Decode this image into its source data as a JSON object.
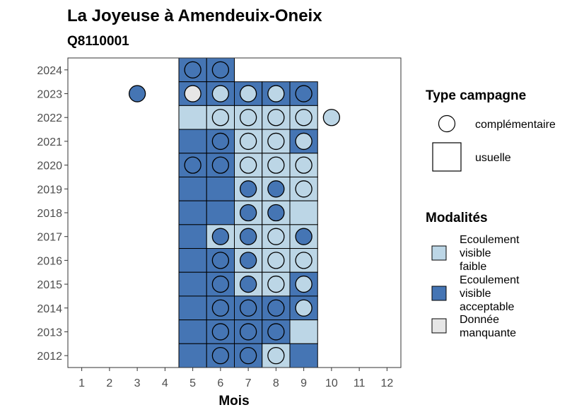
{
  "chart_data": {
    "type": "heatmap",
    "title": "La Joyeuse à Amendeuix-Oneix",
    "subtitle": "Q8110001",
    "xlabel": "Mois",
    "ylabel": "",
    "x_ticks": [
      "1",
      "2",
      "3",
      "4",
      "5",
      "6",
      "7",
      "8",
      "9",
      "10",
      "11",
      "12"
    ],
    "y_ticks": [
      "2012",
      "2013",
      "2014",
      "2015",
      "2016",
      "2017",
      "2018",
      "2019",
      "2020",
      "2021",
      "2022",
      "2023",
      "2024"
    ],
    "xlim": [
      0.5,
      12.5
    ],
    "ylim": [
      2011.5,
      2024.5
    ],
    "grid": false,
    "legend_position": "right",
    "colors": {
      "faible": "#bcd6e6",
      "acceptable": "#4575b4",
      "manquante": "#e6e6e6"
    },
    "legend": {
      "type_title": "Type campagne",
      "type_entries": [
        {
          "key": "complementaire",
          "label": "complémentaire",
          "shape": "circle"
        },
        {
          "key": "usuelle",
          "label": "usuelle",
          "shape": "square"
        }
      ],
      "modalites_title": "Modalités",
      "modalites_entries": [
        {
          "key": "faible",
          "lines": [
            "Ecoulement",
            "visible",
            "faible"
          ]
        },
        {
          "key": "acceptable",
          "lines": [
            "Ecoulement",
            "visible",
            "acceptable"
          ]
        },
        {
          "key": "manquante",
          "lines": [
            "Donnée",
            "manquante"
          ]
        }
      ]
    },
    "tiles": [
      {
        "month": 5,
        "year": 2024,
        "modalite": "acceptable"
      },
      {
        "month": 6,
        "year": 2024,
        "modalite": "acceptable"
      },
      {
        "month": 5,
        "year": 2023,
        "modalite": "acceptable"
      },
      {
        "month": 6,
        "year": 2023,
        "modalite": "acceptable"
      },
      {
        "month": 7,
        "year": 2023,
        "modalite": "acceptable"
      },
      {
        "month": 8,
        "year": 2023,
        "modalite": "acceptable"
      },
      {
        "month": 9,
        "year": 2023,
        "modalite": "acceptable"
      },
      {
        "month": 5,
        "year": 2022,
        "modalite": "faible"
      },
      {
        "month": 6,
        "year": 2022,
        "modalite": "faible"
      },
      {
        "month": 7,
        "year": 2022,
        "modalite": "faible"
      },
      {
        "month": 8,
        "year": 2022,
        "modalite": "faible"
      },
      {
        "month": 9,
        "year": 2022,
        "modalite": "faible"
      },
      {
        "month": 5,
        "year": 2021,
        "modalite": "acceptable"
      },
      {
        "month": 6,
        "year": 2021,
        "modalite": "acceptable"
      },
      {
        "month": 7,
        "year": 2021,
        "modalite": "faible"
      },
      {
        "month": 8,
        "year": 2021,
        "modalite": "faible"
      },
      {
        "month": 9,
        "year": 2021,
        "modalite": "acceptable"
      },
      {
        "month": 5,
        "year": 2020,
        "modalite": "acceptable"
      },
      {
        "month": 6,
        "year": 2020,
        "modalite": "acceptable"
      },
      {
        "month": 7,
        "year": 2020,
        "modalite": "faible"
      },
      {
        "month": 8,
        "year": 2020,
        "modalite": "faible"
      },
      {
        "month": 9,
        "year": 2020,
        "modalite": "faible"
      },
      {
        "month": 5,
        "year": 2019,
        "modalite": "acceptable"
      },
      {
        "month": 6,
        "year": 2019,
        "modalite": "acceptable"
      },
      {
        "month": 7,
        "year": 2019,
        "modalite": "faible"
      },
      {
        "month": 8,
        "year": 2019,
        "modalite": "faible"
      },
      {
        "month": 9,
        "year": 2019,
        "modalite": "faible"
      },
      {
        "month": 5,
        "year": 2018,
        "modalite": "acceptable"
      },
      {
        "month": 6,
        "year": 2018,
        "modalite": "acceptable"
      },
      {
        "month": 7,
        "year": 2018,
        "modalite": "faible"
      },
      {
        "month": 8,
        "year": 2018,
        "modalite": "faible"
      },
      {
        "month": 9,
        "year": 2018,
        "modalite": "faible"
      },
      {
        "month": 5,
        "year": 2017,
        "modalite": "acceptable"
      },
      {
        "month": 6,
        "year": 2017,
        "modalite": "faible"
      },
      {
        "month": 7,
        "year": 2017,
        "modalite": "faible"
      },
      {
        "month": 8,
        "year": 2017,
        "modalite": "faible"
      },
      {
        "month": 9,
        "year": 2017,
        "modalite": "faible"
      },
      {
        "month": 5,
        "year": 2016,
        "modalite": "acceptable"
      },
      {
        "month": 6,
        "year": 2016,
        "modalite": "acceptable"
      },
      {
        "month": 7,
        "year": 2016,
        "modalite": "faible"
      },
      {
        "month": 8,
        "year": 2016,
        "modalite": "faible"
      },
      {
        "month": 9,
        "year": 2016,
        "modalite": "faible"
      },
      {
        "month": 5,
        "year": 2015,
        "modalite": "acceptable"
      },
      {
        "month": 6,
        "year": 2015,
        "modalite": "acceptable"
      },
      {
        "month": 7,
        "year": 2015,
        "modalite": "faible"
      },
      {
        "month": 8,
        "year": 2015,
        "modalite": "faible"
      },
      {
        "month": 9,
        "year": 2015,
        "modalite": "acceptable"
      },
      {
        "month": 5,
        "year": 2014,
        "modalite": "acceptable"
      },
      {
        "month": 6,
        "year": 2014,
        "modalite": "acceptable"
      },
      {
        "month": 7,
        "year": 2014,
        "modalite": "acceptable"
      },
      {
        "month": 8,
        "year": 2014,
        "modalite": "acceptable"
      },
      {
        "month": 9,
        "year": 2014,
        "modalite": "acceptable"
      },
      {
        "month": 5,
        "year": 2013,
        "modalite": "acceptable"
      },
      {
        "month": 6,
        "year": 2013,
        "modalite": "acceptable"
      },
      {
        "month": 7,
        "year": 2013,
        "modalite": "acceptable"
      },
      {
        "month": 8,
        "year": 2013,
        "modalite": "acceptable"
      },
      {
        "month": 9,
        "year": 2013,
        "modalite": "faible"
      },
      {
        "month": 5,
        "year": 2012,
        "modalite": "acceptable"
      },
      {
        "month": 6,
        "year": 2012,
        "modalite": "acceptable"
      },
      {
        "month": 7,
        "year": 2012,
        "modalite": "acceptable"
      },
      {
        "month": 8,
        "year": 2012,
        "modalite": "faible"
      },
      {
        "month": 9,
        "year": 2012,
        "modalite": "acceptable"
      }
    ],
    "points": [
      {
        "month": 5,
        "year": 2024,
        "modalite": "acceptable"
      },
      {
        "month": 6,
        "year": 2024,
        "modalite": "acceptable"
      },
      {
        "month": 3,
        "year": 2023,
        "modalite": "acceptable"
      },
      {
        "month": 5,
        "year": 2023,
        "modalite": "manquante"
      },
      {
        "month": 6,
        "year": 2023,
        "modalite": "faible"
      },
      {
        "month": 7,
        "year": 2023,
        "modalite": "faible"
      },
      {
        "month": 8,
        "year": 2023,
        "modalite": "faible"
      },
      {
        "month": 9,
        "year": 2023,
        "modalite": "acceptable"
      },
      {
        "month": 6,
        "year": 2022,
        "modalite": "faible"
      },
      {
        "month": 7,
        "year": 2022,
        "modalite": "faible"
      },
      {
        "month": 8,
        "year": 2022,
        "modalite": "faible"
      },
      {
        "month": 9,
        "year": 2022,
        "modalite": "faible"
      },
      {
        "month": 10,
        "year": 2022,
        "modalite": "faible"
      },
      {
        "month": 6,
        "year": 2021,
        "modalite": "acceptable"
      },
      {
        "month": 7,
        "year": 2021,
        "modalite": "faible"
      },
      {
        "month": 8,
        "year": 2021,
        "modalite": "faible"
      },
      {
        "month": 9,
        "year": 2021,
        "modalite": "faible"
      },
      {
        "month": 5,
        "year": 2020,
        "modalite": "acceptable"
      },
      {
        "month": 6,
        "year": 2020,
        "modalite": "acceptable"
      },
      {
        "month": 7,
        "year": 2020,
        "modalite": "faible"
      },
      {
        "month": 8,
        "year": 2020,
        "modalite": "faible"
      },
      {
        "month": 9,
        "year": 2020,
        "modalite": "faible"
      },
      {
        "month": 7,
        "year": 2019,
        "modalite": "acceptable"
      },
      {
        "month": 8,
        "year": 2019,
        "modalite": "acceptable"
      },
      {
        "month": 9,
        "year": 2019,
        "modalite": "faible"
      },
      {
        "month": 7,
        "year": 2018,
        "modalite": "acceptable"
      },
      {
        "month": 8,
        "year": 2018,
        "modalite": "acceptable"
      },
      {
        "month": 6,
        "year": 2017,
        "modalite": "acceptable"
      },
      {
        "month": 7,
        "year": 2017,
        "modalite": "acceptable"
      },
      {
        "month": 8,
        "year": 2017,
        "modalite": "faible"
      },
      {
        "month": 9,
        "year": 2017,
        "modalite": "acceptable"
      },
      {
        "month": 6,
        "year": 2016,
        "modalite": "acceptable"
      },
      {
        "month": 7,
        "year": 2016,
        "modalite": "acceptable"
      },
      {
        "month": 8,
        "year": 2016,
        "modalite": "faible"
      },
      {
        "month": 9,
        "year": 2016,
        "modalite": "faible"
      },
      {
        "month": 6,
        "year": 2015,
        "modalite": "acceptable"
      },
      {
        "month": 7,
        "year": 2015,
        "modalite": "acceptable"
      },
      {
        "month": 8,
        "year": 2015,
        "modalite": "faible"
      },
      {
        "month": 9,
        "year": 2015,
        "modalite": "faible"
      },
      {
        "month": 6,
        "year": 2014,
        "modalite": "acceptable"
      },
      {
        "month": 7,
        "year": 2014,
        "modalite": "acceptable"
      },
      {
        "month": 8,
        "year": 2014,
        "modalite": "acceptable"
      },
      {
        "month": 9,
        "year": 2014,
        "modalite": "faible"
      },
      {
        "month": 6,
        "year": 2013,
        "modalite": "acceptable"
      },
      {
        "month": 7,
        "year": 2013,
        "modalite": "acceptable"
      },
      {
        "month": 8,
        "year": 2013,
        "modalite": "acceptable"
      },
      {
        "month": 6,
        "year": 2012,
        "modalite": "acceptable"
      },
      {
        "month": 7,
        "year": 2012,
        "modalite": "acceptable"
      },
      {
        "month": 8,
        "year": 2012,
        "modalite": "faible"
      }
    ]
  }
}
